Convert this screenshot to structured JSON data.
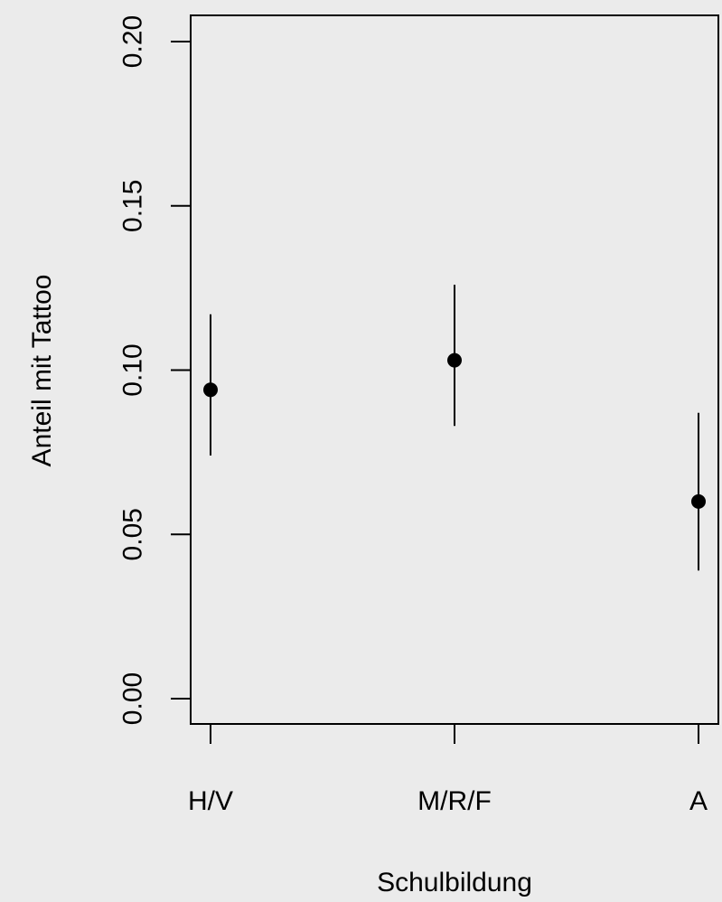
{
  "chart_data": {
    "type": "scatter",
    "title": "",
    "xlabel": "Schulbildung",
    "ylabel": "Anteil mit Tattoo",
    "categories": [
      "H/V",
      "M/R/F",
      "A"
    ],
    "series": [
      {
        "values": [
          0.094,
          0.103,
          0.06
        ],
        "lower": [
          0.074,
          0.083,
          0.039
        ],
        "upper": [
          0.117,
          0.126,
          0.087
        ]
      }
    ],
    "ylim": [
      0.0,
      0.2
    ],
    "yticks": [
      0.0,
      0.05,
      0.1,
      0.15,
      0.2
    ],
    "ytick_labels": [
      "0.00",
      "0.05",
      "0.10",
      "0.15",
      "0.20"
    ],
    "error_bars": true,
    "grid": false,
    "colors": {
      "background": "#ebebeb",
      "marks": "#000000"
    }
  }
}
